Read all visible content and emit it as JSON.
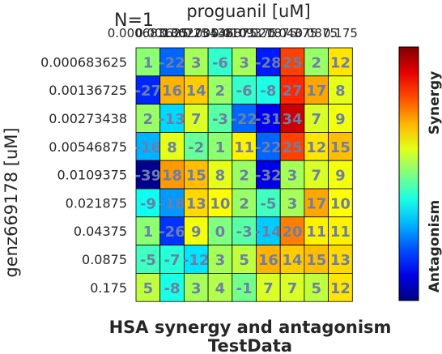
{
  "chart_data": {
    "type": "heatmap",
    "title": "HSA synergy and antagonism",
    "subtitle": "TestData",
    "top_label": "N=1",
    "xlabel": "proguanil [uM]",
    "ylabel": "genz669178 [uM]",
    "x_ticks": [
      "0.000683625",
      "0.00136725",
      "0.00273438",
      "0.00546875",
      "0.0109375",
      "0.021875",
      "0.04375",
      "0.0875",
      "0.175"
    ],
    "y_ticks": [
      "0.000683625",
      "0.00136725",
      "0.00273438",
      "0.00546875",
      "0.0109375",
      "0.021875",
      "0.04375",
      "0.0875",
      "0.175"
    ],
    "values": [
      [
        1,
        -22,
        3,
        -6,
        3,
        -28,
        25,
        2,
        12
      ],
      [
        -27,
        16,
        14,
        2,
        -6,
        -8,
        27,
        17,
        8
      ],
      [
        2,
        -13,
        7,
        -3,
        -22,
        -31,
        34,
        7,
        9
      ],
      [
        -16,
        8,
        -2,
        1,
        11,
        -22,
        25,
        12,
        15
      ],
      [
        -39,
        18,
        15,
        8,
        2,
        -32,
        3,
        7,
        9
      ],
      [
        -9,
        -18,
        13,
        10,
        2,
        -5,
        3,
        17,
        10
      ],
      [
        1,
        -26,
        9,
        0,
        -3,
        -14,
        20,
        11,
        11
      ],
      [
        -5,
        -7,
        -12,
        3,
        5,
        16,
        14,
        15,
        13
      ],
      [
        5,
        -8,
        3,
        4,
        -1,
        7,
        7,
        5,
        12
      ]
    ],
    "colorbar": {
      "label_top": "Synergy",
      "label_bottom": "Antagonism",
      "range": [
        -40,
        40
      ],
      "colormap": "jet"
    }
  }
}
